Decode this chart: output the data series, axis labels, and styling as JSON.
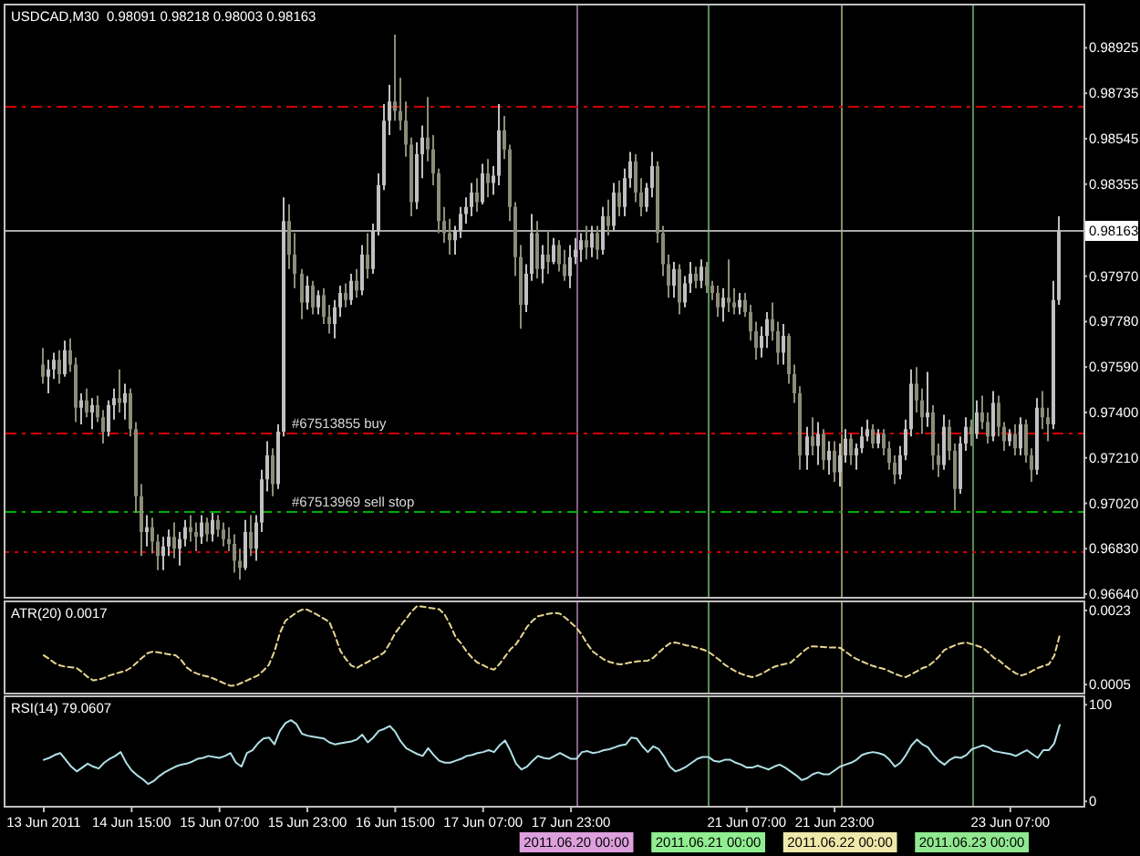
{
  "chart_data": [
    {
      "type": "candlestick",
      "title": "USDCAD,M30  0.98091 0.98218 0.98003 0.98163",
      "categories": [
        "13 Jun 2011",
        null,
        null,
        null,
        null,
        null,
        null,
        null,
        null,
        null,
        null,
        null,
        null,
        null,
        null,
        null,
        "14 Jun 15:00",
        null,
        null,
        null,
        null,
        null,
        null,
        null,
        null,
        null,
        null,
        null,
        null,
        null,
        null,
        null,
        "15 Jun 07:00",
        null,
        null,
        null,
        null,
        null,
        null,
        null,
        null,
        null,
        null,
        null,
        null,
        null,
        null,
        null,
        "15 Jun 23:00",
        null,
        null,
        null,
        null,
        null,
        null,
        null,
        null,
        null,
        null,
        null,
        null,
        null,
        null,
        null,
        "16 Jun 15:00",
        null,
        null,
        null,
        null,
        null,
        null,
        null,
        null,
        null,
        null,
        null,
        null,
        null,
        null,
        null,
        "17 Jun 07:00",
        null,
        null,
        null,
        null,
        null,
        null,
        null,
        null,
        null,
        null,
        null,
        null,
        null,
        null,
        null,
        "17 Jun 23:00",
        "2011.06.20 00:00",
        null,
        null,
        null,
        null,
        null,
        null,
        null,
        null,
        null,
        null,
        null,
        null,
        null,
        null,
        null,
        null,
        null,
        null,
        null,
        null,
        null,
        null,
        null,
        "2011.06.21 00:00",
        null,
        null,
        null,
        null,
        null,
        null,
        "21 Jun 07:00",
        null,
        null,
        null,
        null,
        null,
        null,
        null,
        null,
        null,
        null,
        null,
        null,
        null,
        null,
        null,
        "21 Jun 23:00",
        "2011.06.22 00:00",
        null,
        null,
        null,
        null,
        null,
        null,
        null,
        null,
        null,
        null,
        null,
        null,
        null,
        null,
        null,
        null,
        null,
        null,
        null,
        null,
        null,
        null,
        null,
        "2011.06.23 00:00",
        null,
        null,
        null,
        null,
        null,
        null,
        "23 Jun 07:00",
        null,
        null,
        null,
        null,
        null,
        null,
        null,
        null,
        null
      ],
      "ohlc": [
        [
          0.976,
          0.9767,
          0.9752,
          0.9755
        ],
        [
          0.9755,
          0.9762,
          0.9748,
          0.9758
        ],
        [
          0.9758,
          0.9765,
          0.9754,
          0.9762
        ],
        [
          0.9762,
          0.9766,
          0.9752,
          0.9756
        ],
        [
          0.9756,
          0.977,
          0.9755,
          0.9766
        ],
        [
          0.9766,
          0.9771,
          0.9757,
          0.976
        ],
        [
          0.976,
          0.9763,
          0.9736,
          0.9742
        ],
        [
          0.9742,
          0.9748,
          0.9735,
          0.9745
        ],
        [
          0.9745,
          0.975,
          0.9738,
          0.974
        ],
        [
          0.974,
          0.9746,
          0.9733,
          0.9743
        ],
        [
          0.9743,
          0.9747,
          0.9736,
          0.9738
        ],
        [
          0.9738,
          0.9741,
          0.9727,
          0.9732
        ],
        [
          0.9732,
          0.9745,
          0.973,
          0.9743
        ],
        [
          0.9743,
          0.975,
          0.9737,
          0.9746
        ],
        [
          0.9746,
          0.9758,
          0.974,
          0.9744
        ],
        [
          0.9744,
          0.9752,
          0.9737,
          0.9748
        ],
        [
          0.9748,
          0.975,
          0.973,
          0.9733
        ],
        [
          0.9733,
          0.9736,
          0.9698,
          0.9705
        ],
        [
          0.9705,
          0.971,
          0.968,
          0.969
        ],
        [
          0.969,
          0.9697,
          0.9684,
          0.9692
        ],
        [
          0.9692,
          0.9696,
          0.9681,
          0.9686
        ],
        [
          0.9686,
          0.9689,
          0.9674,
          0.968
        ],
        [
          0.968,
          0.9688,
          0.9674,
          0.9684
        ],
        [
          0.9684,
          0.9691,
          0.968,
          0.9688
        ],
        [
          0.9688,
          0.9694,
          0.9679,
          0.9683
        ],
        [
          0.9683,
          0.969,
          0.9676,
          0.9687
        ],
        [
          0.9687,
          0.9695,
          0.9684,
          0.9692
        ],
        [
          0.9692,
          0.9697,
          0.9686,
          0.969
        ],
        [
          0.969,
          0.9694,
          0.9682,
          0.9688
        ],
        [
          0.9688,
          0.9697,
          0.9685,
          0.9694
        ],
        [
          0.9694,
          0.9696,
          0.9686,
          0.9689
        ],
        [
          0.9689,
          0.9698,
          0.9686,
          0.9695
        ],
        [
          0.9695,
          0.9697,
          0.9688,
          0.9691
        ],
        [
          0.9691,
          0.9694,
          0.9684,
          0.9687
        ],
        [
          0.9687,
          0.9692,
          0.9682,
          0.9685
        ],
        [
          0.9685,
          0.9689,
          0.9673,
          0.9678
        ],
        [
          0.9678,
          0.9683,
          0.967,
          0.9675
        ],
        [
          0.9675,
          0.9695,
          0.9674,
          0.969
        ],
        [
          0.969,
          0.9697,
          0.968,
          0.9683
        ],
        [
          0.9683,
          0.9697,
          0.9678,
          0.9694
        ],
        [
          0.9694,
          0.9716,
          0.969,
          0.9712
        ],
        [
          0.9712,
          0.9728,
          0.9707,
          0.9722
        ],
        [
          0.9722,
          0.9725,
          0.9705,
          0.971
        ],
        [
          0.971,
          0.9735,
          0.9708,
          0.9732
        ],
        [
          0.9732,
          0.983,
          0.973,
          0.982
        ],
        [
          0.982,
          0.9827,
          0.98,
          0.9806
        ],
        [
          0.9806,
          0.9815,
          0.9792,
          0.9798
        ],
        [
          0.9798,
          0.98,
          0.9779,
          0.9786
        ],
        [
          0.9786,
          0.9797,
          0.9783,
          0.9793
        ],
        [
          0.9793,
          0.9795,
          0.9781,
          0.9784
        ],
        [
          0.9784,
          0.9791,
          0.9781,
          0.9789
        ],
        [
          0.9789,
          0.9792,
          0.9777,
          0.978
        ],
        [
          0.978,
          0.9785,
          0.9773,
          0.9777
        ],
        [
          0.9777,
          0.9787,
          0.9771,
          0.9784
        ],
        [
          0.9784,
          0.9793,
          0.978,
          0.979
        ],
        [
          0.979,
          0.9794,
          0.9784,
          0.9787
        ],
        [
          0.9787,
          0.9798,
          0.9785,
          0.9795
        ],
        [
          0.9795,
          0.98,
          0.9788,
          0.9791
        ],
        [
          0.9791,
          0.981,
          0.9789,
          0.9806
        ],
        [
          0.9806,
          0.9815,
          0.9796,
          0.98
        ],
        [
          0.98,
          0.9819,
          0.9798,
          0.9816
        ],
        [
          0.9816,
          0.984,
          0.9814,
          0.9835
        ],
        [
          0.9835,
          0.9869,
          0.9833,
          0.9862
        ],
        [
          0.9862,
          0.9877,
          0.9856,
          0.987
        ],
        [
          0.987,
          0.9898,
          0.9862,
          0.9866
        ],
        [
          0.9866,
          0.988,
          0.9858,
          0.9862
        ],
        [
          0.9862,
          0.987,
          0.9847,
          0.9852
        ],
        [
          0.9852,
          0.9855,
          0.9822,
          0.9828
        ],
        [
          0.9828,
          0.9853,
          0.9825,
          0.9848
        ],
        [
          0.9848,
          0.986,
          0.9838,
          0.9855
        ],
        [
          0.9855,
          0.9872,
          0.9845,
          0.985
        ],
        [
          0.985,
          0.9856,
          0.9835,
          0.984
        ],
        [
          0.984,
          0.9842,
          0.9815,
          0.982
        ],
        [
          0.982,
          0.9826,
          0.9811,
          0.9815
        ],
        [
          0.9815,
          0.9821,
          0.9806,
          0.9812
        ],
        [
          0.9812,
          0.9818,
          0.9806,
          0.9816
        ],
        [
          0.9816,
          0.9826,
          0.9813,
          0.9823
        ],
        [
          0.9823,
          0.983,
          0.9819,
          0.9826
        ],
        [
          0.9826,
          0.9836,
          0.9822,
          0.9832
        ],
        [
          0.9832,
          0.9838,
          0.9824,
          0.9828
        ],
        [
          0.9828,
          0.9844,
          0.9827,
          0.984
        ],
        [
          0.984,
          0.9846,
          0.983,
          0.9836
        ],
        [
          0.9836,
          0.9843,
          0.9831,
          0.9839
        ],
        [
          0.9839,
          0.9869,
          0.9835,
          0.9858
        ],
        [
          0.9858,
          0.9864,
          0.9846,
          0.985
        ],
        [
          0.985,
          0.9852,
          0.982,
          0.9826
        ],
        [
          0.9826,
          0.9828,
          0.9797,
          0.9805
        ],
        [
          0.9805,
          0.981,
          0.9775,
          0.9785
        ],
        [
          0.9785,
          0.9802,
          0.9782,
          0.9798
        ],
        [
          0.9798,
          0.9823,
          0.9795,
          0.9815
        ],
        [
          0.9815,
          0.982,
          0.9796,
          0.98
        ],
        [
          0.98,
          0.981,
          0.9794,
          0.9806
        ],
        [
          0.9806,
          0.9816,
          0.9798,
          0.9803
        ],
        [
          0.9803,
          0.9813,
          0.9802,
          0.981
        ],
        [
          0.981,
          0.9812,
          0.9799,
          0.9802
        ],
        [
          0.9802,
          0.9808,
          0.9795,
          0.9797
        ],
        [
          0.9797,
          0.981,
          0.9792,
          0.9805
        ],
        [
          0.9805,
          0.9813,
          0.9802,
          0.9808
        ],
        [
          0.9808,
          0.9815,
          0.9803,
          0.9812
        ],
        [
          0.9812,
          0.9818,
          0.9804,
          0.9809
        ],
        [
          0.9809,
          0.9818,
          0.9805,
          0.9815
        ],
        [
          0.9815,
          0.9818,
          0.9804,
          0.9808
        ],
        [
          0.9808,
          0.9826,
          0.9806,
          0.9822
        ],
        [
          0.9822,
          0.9829,
          0.9814,
          0.9818
        ],
        [
          0.9818,
          0.9836,
          0.9816,
          0.9832
        ],
        [
          0.9832,
          0.9837,
          0.9822,
          0.9826
        ],
        [
          0.9826,
          0.9842,
          0.9822,
          0.9838
        ],
        [
          0.9838,
          0.9849,
          0.9834,
          0.9845
        ],
        [
          0.9845,
          0.9848,
          0.9828,
          0.9832
        ],
        [
          0.9832,
          0.9838,
          0.9822,
          0.9826
        ],
        [
          0.9826,
          0.9836,
          0.9824,
          0.9834
        ],
        [
          0.9834,
          0.9849,
          0.983,
          0.9843
        ],
        [
          0.9843,
          0.9845,
          0.9811,
          0.9815
        ],
        [
          0.9815,
          0.9818,
          0.9797,
          0.9802
        ],
        [
          0.9802,
          0.9806,
          0.9788,
          0.9793
        ],
        [
          0.9793,
          0.9803,
          0.9788,
          0.98
        ],
        [
          0.98,
          0.9802,
          0.9781,
          0.9786
        ],
        [
          0.9786,
          0.9797,
          0.9784,
          0.9794
        ],
        [
          0.9794,
          0.9803,
          0.979,
          0.9798
        ],
        [
          0.9798,
          0.9801,
          0.9792,
          0.9795
        ],
        [
          0.9795,
          0.9804,
          0.9792,
          0.9801
        ],
        [
          0.9801,
          0.9803,
          0.979,
          0.9793
        ],
        [
          0.9793,
          0.9795,
          0.9787,
          0.979
        ],
        [
          0.979,
          0.9793,
          0.978,
          0.9784
        ],
        [
          0.9784,
          0.9792,
          0.9778,
          0.9788
        ],
        [
          0.9788,
          0.9804,
          0.9782,
          0.9786
        ],
        [
          0.9786,
          0.9792,
          0.9781,
          0.9784
        ],
        [
          0.9784,
          0.979,
          0.9781,
          0.9787
        ],
        [
          0.9787,
          0.979,
          0.978,
          0.9782
        ],
        [
          0.9782,
          0.9785,
          0.977,
          0.9774
        ],
        [
          0.9774,
          0.9778,
          0.9762,
          0.9767
        ],
        [
          0.9767,
          0.9776,
          0.9763,
          0.9772
        ],
        [
          0.9772,
          0.9782,
          0.9767,
          0.9779
        ],
        [
          0.9779,
          0.9786,
          0.977,
          0.9774
        ],
        [
          0.9774,
          0.9778,
          0.976,
          0.9765
        ],
        [
          0.9765,
          0.9777,
          0.976,
          0.9772
        ],
        [
          0.9772,
          0.9773,
          0.9752,
          0.9756
        ],
        [
          0.9756,
          0.976,
          0.9744,
          0.9748
        ],
        [
          0.9748,
          0.9751,
          0.9716,
          0.9722
        ],
        [
          0.9722,
          0.9734,
          0.9716,
          0.973
        ],
        [
          0.973,
          0.9738,
          0.9722,
          0.9726
        ],
        [
          0.9726,
          0.9736,
          0.9718,
          0.9731
        ],
        [
          0.9731,
          0.9733,
          0.9716,
          0.972
        ],
        [
          0.972,
          0.9728,
          0.9714,
          0.9724
        ],
        [
          0.9724,
          0.9728,
          0.9711,
          0.9715
        ],
        [
          0.9715,
          0.9727,
          0.9709,
          0.9722
        ],
        [
          0.9722,
          0.9733,
          0.9719,
          0.9729
        ],
        [
          0.9729,
          0.9731,
          0.9718,
          0.9722
        ],
        [
          0.9722,
          0.9727,
          0.9716,
          0.9725
        ],
        [
          0.9725,
          0.9734,
          0.9723,
          0.973
        ],
        [
          0.973,
          0.9737,
          0.9728,
          0.9733
        ],
        [
          0.9733,
          0.9735,
          0.9725,
          0.9727
        ],
        [
          0.9727,
          0.9733,
          0.9725,
          0.9731
        ],
        [
          0.9731,
          0.9733,
          0.9722,
          0.9725
        ],
        [
          0.9725,
          0.9728,
          0.9716,
          0.9719
        ],
        [
          0.9719,
          0.9722,
          0.971,
          0.9714
        ],
        [
          0.9714,
          0.9726,
          0.9712,
          0.9722
        ],
        [
          0.9722,
          0.9737,
          0.972,
          0.9733
        ],
        [
          0.9733,
          0.9758,
          0.973,
          0.9752
        ],
        [
          0.9752,
          0.9759,
          0.974,
          0.9745
        ],
        [
          0.9745,
          0.975,
          0.9731,
          0.9738
        ],
        [
          0.9738,
          0.9757,
          0.9734,
          0.974
        ],
        [
          0.974,
          0.9743,
          0.9716,
          0.9722
        ],
        [
          0.9722,
          0.9727,
          0.9713,
          0.9718
        ],
        [
          0.9718,
          0.9739,
          0.9716,
          0.9734
        ],
        [
          0.9734,
          0.9737,
          0.972,
          0.9724
        ],
        [
          0.9724,
          0.9727,
          0.9699,
          0.9708
        ],
        [
          0.9708,
          0.973,
          0.9706,
          0.9727
        ],
        [
          0.9727,
          0.9738,
          0.9724,
          0.9734
        ],
        [
          0.9734,
          0.9737,
          0.9726,
          0.9731
        ],
        [
          0.9731,
          0.9745,
          0.9729,
          0.974
        ],
        [
          0.974,
          0.9747,
          0.9733,
          0.9736
        ],
        [
          0.9736,
          0.974,
          0.9727,
          0.973
        ],
        [
          0.973,
          0.9749,
          0.9728,
          0.9744
        ],
        [
          0.9744,
          0.9747,
          0.973,
          0.9734
        ],
        [
          0.9734,
          0.9736,
          0.9724,
          0.9728
        ],
        [
          0.9728,
          0.9733,
          0.9726,
          0.9731
        ],
        [
          0.9731,
          0.9735,
          0.9722,
          0.9725
        ],
        [
          0.9725,
          0.9738,
          0.9722,
          0.9735
        ],
        [
          0.9735,
          0.9737,
          0.9719,
          0.9722
        ],
        [
          0.9722,
          0.9725,
          0.9711,
          0.9716
        ],
        [
          0.9716,
          0.9746,
          0.9714,
          0.9742
        ],
        [
          0.9742,
          0.9749,
          0.9733,
          0.9738
        ],
        [
          0.9738,
          0.9742,
          0.9728,
          0.9735
        ],
        [
          0.9735,
          0.9795,
          0.9733,
          0.9787
        ],
        [
          0.9787,
          0.9822,
          0.9785,
          0.9816
        ]
      ],
      "colors": [
        "#8c8c78",
        "#c0c0c0",
        "#c0c0c0",
        "#8c8c78",
        "#c0c0c0",
        "#8c8c78",
        "#8c8c78",
        "#c0c0c0",
        "#8c8c78",
        "#c0c0c0",
        "#8c8c78",
        "#8c8c78",
        "#c0c0c0",
        "#c0c0c0",
        "#8c8c78",
        "#c0c0c0",
        "#8c8c78",
        "#8c8c78",
        "#8c8c78",
        "#c0c0c0",
        "#8c8c78",
        "#8c8c78",
        "#c0c0c0",
        "#c0c0c0",
        "#8c8c78",
        "#c0c0c0",
        "#c0c0c0",
        "#8c8c78",
        "#8c8c78",
        "#c0c0c0",
        "#8c8c78",
        "#c0c0c0",
        "#8c8c78",
        "#8c8c78",
        "#8c8c78",
        "#8c8c78",
        "#8c8c78",
        "#c0c0c0",
        "#8c8c78",
        "#c0c0c0",
        "#c0c0c0",
        "#c0c0c0",
        "#8c8c78",
        "#c0c0c0",
        "#c0c0c0",
        "#8c8c78",
        "#8c8c78",
        "#8c8c78",
        "#c0c0c0",
        "#8c8c78",
        "#c0c0c0",
        "#8c8c78",
        "#8c8c78",
        "#c0c0c0",
        "#c0c0c0",
        "#8c8c78",
        "#c0c0c0",
        "#8c8c78",
        "#c0c0c0",
        "#8c8c78",
        "#c0c0c0",
        "#c0c0c0",
        "#c0c0c0",
        "#c0c0c0",
        "#8c8c78",
        "#8c8c78",
        "#8c8c78",
        "#8c8c78",
        "#c0c0c0",
        "#c0c0c0",
        "#8c8c78",
        "#8c8c78",
        "#8c8c78",
        "#8c8c78",
        "#8c8c78",
        "#c0c0c0",
        "#c0c0c0",
        "#c0c0c0",
        "#c0c0c0",
        "#8c8c78",
        "#c0c0c0",
        "#8c8c78",
        "#c0c0c0",
        "#c0c0c0",
        "#8c8c78",
        "#8c8c78",
        "#8c8c78",
        "#8c8c78",
        "#c0c0c0",
        "#c0c0c0",
        "#8c8c78",
        "#c0c0c0",
        "#8c8c78",
        "#c0c0c0",
        "#8c8c78",
        "#8c8c78",
        "#c0c0c0",
        "#c0c0c0",
        "#c0c0c0",
        "#8c8c78",
        "#c0c0c0",
        "#8c8c78",
        "#c0c0c0",
        "#8c8c78",
        "#c0c0c0",
        "#8c8c78",
        "#c0c0c0",
        "#c0c0c0",
        "#8c8c78",
        "#8c8c78",
        "#c0c0c0",
        "#c0c0c0",
        "#8c8c78",
        "#8c8c78",
        "#8c8c78",
        "#c0c0c0",
        "#8c8c78",
        "#c0c0c0",
        "#c0c0c0",
        "#8c8c78",
        "#c0c0c0",
        "#8c8c78",
        "#8c8c78",
        "#8c8c78",
        "#c0c0c0",
        "#8c8c78",
        "#8c8c78",
        "#c0c0c0",
        "#8c8c78",
        "#8c8c78",
        "#8c8c78",
        "#c0c0c0",
        "#c0c0c0",
        "#8c8c78",
        "#8c8c78",
        "#c0c0c0",
        "#8c8c78",
        "#8c8c78",
        "#8c8c78",
        "#c0c0c0",
        "#8c8c78",
        "#c0c0c0",
        "#8c8c78",
        "#c0c0c0",
        "#8c8c78",
        "#c0c0c0",
        "#c0c0c0",
        "#8c8c78",
        "#c0c0c0",
        "#c0c0c0",
        "#c0c0c0",
        "#8c8c78",
        "#c0c0c0",
        "#8c8c78",
        "#8c8c78",
        "#8c8c78",
        "#c0c0c0",
        "#c0c0c0",
        "#c0c0c0",
        "#8c8c78",
        "#8c8c78",
        "#c0c0c0",
        "#8c8c78",
        "#8c8c78",
        "#c0c0c0",
        "#8c8c78",
        "#8c8c78",
        "#c0c0c0",
        "#c0c0c0",
        "#8c8c78",
        "#c0c0c0",
        "#8c8c78",
        "#8c8c78",
        "#c0c0c0",
        "#8c8c78",
        "#8c8c78",
        "#c0c0c0",
        "#8c8c78",
        "#c0c0c0",
        "#8c8c78",
        "#8c8c78",
        "#c0c0c0",
        "#8c8c78",
        "#8c8c78",
        "#c0c0c0",
        "#c0c0c0"
      ],
      "ylim": [
        0.96625,
        0.99106
      ],
      "yticks": [
        0.98925,
        0.98735,
        0.98545,
        0.98355,
        {
          "value": 0.9797,
          "label": "0.97970"
        },
        {
          "value": 0.9778,
          "label": "0.97780"
        },
        {
          "value": 0.9759,
          "label": "0.97590"
        },
        {
          "value": 0.974,
          "label": "0.97400"
        },
        {
          "value": 0.9721,
          "label": "0.97210"
        },
        {
          "value": 0.9702,
          "label": "0.97020"
        },
        {
          "value": 0.9683,
          "label": "0.96830"
        },
        {
          "value": 0.9664,
          "label": "0.96640"
        }
      ],
      "ref_lines": [
        {
          "axis": "y",
          "value": 0.98685,
          "color": "#d00000",
          "line_style": "dashed"
        },
        {
          "axis": "y",
          "value": 0.98163,
          "label": "0.98163",
          "color": "#a8a8a8"
        },
        {
          "axis": "y",
          "value": 0.97313,
          "label": "#67513855 buy",
          "color": "#d00000",
          "line_style": "dashed"
        },
        {
          "axis": "y",
          "value": 0.96986,
          "label": "#67513969 sell stop",
          "color": "#00b000",
          "line_style": "dashed"
        },
        {
          "axis": "y",
          "value": 0.9682,
          "color": "#d00000",
          "line_style": "dotted"
        },
        {
          "axis": "x",
          "value": "2011.06.20 00:00",
          "color": "#dda0dd"
        },
        {
          "axis": "x",
          "value": "2011.06.21 00:00",
          "color": "#90ee90"
        },
        {
          "axis": "x",
          "value": "2011.06.22 00:00",
          "color": "#eee8aa"
        },
        {
          "axis": "x",
          "value": "2011.06.23 00:00",
          "color": "#90e890"
        }
      ],
      "tick_labels": "y"
    },
    {
      "type": "line",
      "title": "ATR(20) 0.0017",
      "categories": [
        "13 Jun 2011",
        null,
        null,
        null,
        null,
        null,
        null,
        null,
        null,
        null,
        null,
        null,
        null,
        null,
        null,
        null,
        "14 Jun 15:00",
        null,
        null,
        null,
        null,
        null,
        null,
        null,
        null,
        null,
        null,
        null,
        null,
        null,
        null,
        null,
        "15 Jun 07:00",
        null,
        null,
        null,
        null,
        null,
        null,
        null,
        null,
        null,
        null,
        null,
        null,
        null,
        null,
        null,
        "15 Jun 23:00",
        null,
        null,
        null,
        null,
        null,
        null,
        null,
        null,
        null,
        null,
        null,
        null,
        null,
        null,
        null,
        "16 Jun 15:00",
        null,
        null,
        null,
        null,
        null,
        null,
        null,
        null,
        null,
        null,
        null,
        null,
        null,
        null,
        null,
        "17 Jun 07:00",
        null,
        null,
        null,
        null,
        null,
        null,
        null,
        null,
        null,
        null,
        null,
        null,
        null,
        null,
        null,
        "17 Jun 23:00",
        "2011.06.20 00:00",
        null,
        null,
        null,
        null,
        null,
        null,
        null,
        null,
        null,
        null,
        null,
        null,
        null,
        null,
        null,
        null,
        null,
        null,
        null,
        null,
        null,
        null,
        null,
        "2011.06.21 00:00",
        null,
        null,
        null,
        null,
        null,
        null,
        "21 Jun 07:00",
        null,
        null,
        null,
        null,
        null,
        null,
        null,
        null,
        null,
        null,
        null,
        null,
        null,
        null,
        null,
        "21 Jun 23:00",
        "2011.06.22 00:00",
        null,
        null,
        null,
        null,
        null,
        null,
        null,
        null,
        null,
        null,
        null,
        null,
        null,
        null,
        null,
        null,
        null,
        null,
        null,
        null,
        null,
        null,
        null,
        "2011.06.23 00:00",
        null,
        null,
        null,
        null,
        null,
        null,
        "23 Jun 07:00",
        null,
        null,
        null,
        null,
        null,
        null,
        null,
        null,
        null
      ],
      "series": [
        {
          "color": "#e6d690",
          "values": [
            0.00121,
            0.00112,
            0.00102,
            0.00096,
            0.00093,
            0.00092,
            0.0009,
            0.0008,
            0.00068,
            0.0006,
            0.00062,
            0.00066,
            0.00072,
            0.00076,
            0.0008,
            0.00084,
            0.00092,
            0.00104,
            0.00116,
            0.00127,
            0.0013,
            0.00128,
            0.00125,
            0.00123,
            0.00121,
            0.0011,
            0.00092,
            0.00082,
            0.00076,
            0.00072,
            0.00069,
            0.00064,
            0.00058,
            0.00052,
            0.00047,
            0.00048,
            0.00054,
            0.0006,
            0.00066,
            0.00072,
            0.00084,
            0.00098,
            0.0013,
            0.00175,
            0.00205,
            0.00215,
            0.00225,
            0.00232,
            0.00232,
            0.00225,
            0.00218,
            0.0021,
            0.00202,
            0.0017,
            0.00132,
            0.00112,
            0.00096,
            0.0009,
            0.00098,
            0.00105,
            0.00112,
            0.00119,
            0.00128,
            0.0015,
            0.00175,
            0.00193,
            0.0021,
            0.00228,
            0.00241,
            0.00239,
            0.00237,
            0.00235,
            0.00233,
            0.0022,
            0.00195,
            0.00165,
            0.0015,
            0.0013,
            0.00115,
            0.00103,
            0.00097,
            0.0009,
            0.00086,
            0.001,
            0.00118,
            0.00136,
            0.00148,
            0.00168,
            0.0019,
            0.00205,
            0.00216,
            0.00219,
            0.00222,
            0.00224,
            0.00222,
            0.00212,
            0.002,
            0.00188,
            0.0017,
            0.00148,
            0.0013,
            0.0012,
            0.00111,
            0.00105,
            0.00101,
            0.00099,
            0.00101,
            0.00104,
            0.00106,
            0.00107,
            0.00108,
            0.00115,
            0.00128,
            0.0014,
            0.0015,
            0.00152,
            0.00149,
            0.00145,
            0.00143,
            0.00139,
            0.00135,
            0.0013,
            0.0012,
            0.0011,
            0.00098,
            0.0009,
            0.00082,
            0.00076,
            0.00071,
            0.00068,
            0.00072,
            0.00078,
            0.00086,
            0.00093,
            0.00097,
            0.001,
            0.00103,
            0.00115,
            0.00127,
            0.00138,
            0.00143,
            0.00142,
            0.00141,
            0.0014,
            0.0014,
            0.00139,
            0.0013,
            0.0012,
            0.00112,
            0.00106,
            0.001,
            0.00095,
            0.00091,
            0.00088,
            0.00082,
            0.00076,
            0.00071,
            0.00068,
            0.00075,
            0.00082,
            0.0009,
            0.00094,
            0.00105,
            0.00118,
            0.00134,
            0.0014,
            0.00146,
            0.0015,
            0.00152,
            0.00148,
            0.00144,
            0.00139,
            0.00128,
            0.00115,
            0.00108,
            0.00096,
            0.00086,
            0.00077,
            0.00072,
            0.00076,
            0.00083,
            0.0009,
            0.00095,
            0.00099,
            0.0012,
            0.0017
          ]
        }
      ],
      "line_style": "dashed",
      "ylim": [
        0.00028,
        0.00252
      ],
      "yticks": [
        0.0023,
        0.0005
      ],
      "ref_lines": [
        {
          "axis": "x",
          "value": "2011.06.20 00:00",
          "color": "#dda0dd"
        },
        {
          "axis": "x",
          "value": "2011.06.21 00:00",
          "color": "#90ee90"
        },
        {
          "axis": "x",
          "value": "2011.06.22 00:00",
          "color": "#eee8aa"
        },
        {
          "axis": "x",
          "value": "2011.06.23 00:00",
          "color": "#90e890"
        }
      ],
      "tick_labels": "y"
    },
    {
      "type": "line",
      "title": "RSI(14) 79.0607",
      "categories": [
        "13 Jun 2011",
        null,
        null,
        null,
        null,
        null,
        null,
        null,
        null,
        null,
        null,
        null,
        null,
        null,
        null,
        null,
        "14 Jun 15:00",
        null,
        null,
        null,
        null,
        null,
        null,
        null,
        null,
        null,
        null,
        null,
        null,
        null,
        null,
        null,
        "15 Jun 07:00",
        null,
        null,
        null,
        null,
        null,
        null,
        null,
        null,
        null,
        null,
        null,
        null,
        null,
        null,
        null,
        "15 Jun 23:00",
        null,
        null,
        null,
        null,
        null,
        null,
        null,
        null,
        null,
        null,
        null,
        null,
        null,
        null,
        null,
        "16 Jun 15:00",
        null,
        null,
        null,
        null,
        null,
        null,
        null,
        null,
        null,
        null,
        null,
        null,
        null,
        null,
        null,
        "17 Jun 07:00",
        null,
        null,
        null,
        null,
        null,
        null,
        null,
        null,
        null,
        null,
        null,
        null,
        null,
        null,
        null,
        "17 Jun 23:00",
        "2011.06.20 00:00",
        null,
        null,
        null,
        null,
        null,
        null,
        null,
        null,
        null,
        null,
        null,
        null,
        null,
        null,
        null,
        null,
        null,
        null,
        null,
        null,
        null,
        null,
        null,
        "2011.06.21 00:00",
        null,
        null,
        null,
        null,
        null,
        null,
        "21 Jun 07:00",
        null,
        null,
        null,
        null,
        null,
        null,
        null,
        null,
        null,
        null,
        null,
        null,
        null,
        null,
        null,
        "21 Jun 23:00",
        "2011.06.22 00:00",
        null,
        null,
        null,
        null,
        null,
        null,
        null,
        null,
        null,
        null,
        null,
        null,
        null,
        null,
        null,
        null,
        null,
        null,
        null,
        null,
        null,
        null,
        null,
        "2011.06.23 00:00",
        null,
        null,
        null,
        null,
        null,
        null,
        "23 Jun 07:00",
        null,
        null,
        null,
        null,
        null,
        null,
        null,
        null,
        null
      ],
      "series": [
        {
          "color": "#b0e0e6",
          "values": [
            43,
            45,
            48,
            50,
            43,
            36,
            31,
            35,
            39,
            36,
            34,
            40,
            44,
            47,
            51,
            40,
            32,
            27,
            23,
            18,
            21,
            26,
            30,
            33,
            36,
            38,
            39,
            41,
            44,
            45,
            47,
            46,
            45,
            47,
            50,
            40,
            36,
            50,
            53,
            60,
            65,
            66,
            59,
            73,
            81,
            84,
            80,
            70,
            68,
            67,
            66,
            65,
            61,
            59,
            60,
            61,
            62,
            64,
            69,
            61,
            66,
            73,
            75,
            78,
            72,
            62,
            55,
            52,
            49,
            47,
            55,
            48,
            42,
            40,
            40,
            42,
            44,
            47,
            48,
            50,
            51,
            53,
            51,
            58,
            63,
            52,
            39,
            33,
            36,
            42,
            47,
            45,
            44,
            47,
            50,
            47,
            44,
            44,
            51,
            52,
            50,
            51,
            53,
            54,
            56,
            58,
            59,
            66,
            65,
            57,
            51,
            57,
            54,
            46,
            36,
            31,
            33,
            36,
            40,
            44,
            46,
            46,
            42,
            41,
            43,
            43,
            40,
            38,
            35,
            35,
            37,
            35,
            33,
            36,
            38,
            35,
            31,
            27,
            22,
            24,
            28,
            30,
            28,
            28,
            32,
            36,
            38,
            40,
            43,
            48,
            50,
            51,
            50,
            48,
            43,
            36,
            40,
            48,
            58,
            64,
            59,
            56,
            48,
            42,
            38,
            43,
            46,
            45,
            48,
            54,
            56,
            58,
            56,
            52,
            51,
            50,
            49,
            47,
            50,
            53,
            49,
            45,
            53,
            53,
            60,
            79.0607
          ]
        }
      ],
      "ylim": [
        -5.5,
        108.7
      ],
      "yticks": [
        100,
        0
      ],
      "ref_lines": [
        {
          "axis": "x",
          "value": "2011.06.20 00:00",
          "color": "#dda0dd"
        },
        {
          "axis": "x",
          "value": "2011.06.21 00:00",
          "color": "#90ee90"
        },
        {
          "axis": "x",
          "value": "2011.06.22 00:00",
          "color": "#eee8aa"
        },
        {
          "axis": "x",
          "value": "2011.06.23 00:00",
          "color": "#90e890"
        }
      ]
    }
  ]
}
